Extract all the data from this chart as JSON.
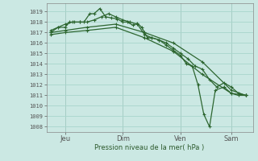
{
  "bg_color": "#cbe8e3",
  "grid_color": "#a8d5cc",
  "line_color": "#2d6630",
  "ylim": [
    1007.5,
    1019.8
  ],
  "yticks": [
    1008,
    1009,
    1010,
    1011,
    1012,
    1013,
    1014,
    1015,
    1016,
    1017,
    1018,
    1019
  ],
  "xlabel": "Pression niveau de la mer( hPa )",
  "xtick_labels": [
    "Jeu",
    "Dim",
    "Ven",
    "Sam"
  ],
  "xtick_positions": [
    1.0,
    5.0,
    9.0,
    12.5
  ],
  "xlim": [
    -0.3,
    14.0
  ],
  "series": [
    {
      "x": [
        0.0,
        0.5,
        1.0,
        1.3,
        1.6,
        2.0,
        2.3,
        2.7,
        3.0,
        3.4,
        3.8,
        4.2,
        4.6,
        5.0,
        5.3,
        5.7,
        6.0,
        6.3,
        6.7,
        7.0,
        7.5,
        8.0,
        8.5,
        9.0,
        9.4,
        9.8,
        10.2,
        10.6,
        11.0,
        11.4,
        12.0,
        12.5,
        13.0,
        13.5
      ],
      "y": [
        1017.0,
        1017.5,
        1017.5,
        1018.0,
        1018.0,
        1018.0,
        1018.0,
        1018.8,
        1018.8,
        1019.3,
        1018.5,
        1018.4,
        1018.3,
        1018.0,
        1018.0,
        1017.7,
        1017.9,
        1017.5,
        1016.5,
        1016.5,
        1016.3,
        1015.8,
        1015.3,
        1014.8,
        1014.0,
        1013.8,
        1012.0,
        1009.2,
        1008.0,
        1011.5,
        1011.8,
        1011.2,
        1011.0,
        1011.0
      ]
    },
    {
      "x": [
        0.0,
        0.5,
        1.0,
        1.5,
        2.0,
        2.5,
        3.0,
        3.5,
        4.0,
        4.5,
        5.0,
        5.5,
        6.0,
        6.5,
        7.0,
        7.5,
        8.0,
        8.5,
        9.0,
        9.5,
        10.0,
        10.5,
        11.0,
        11.5,
        12.0,
        12.5,
        13.0,
        13.5
      ],
      "y": [
        1017.2,
        1017.5,
        1017.8,
        1018.0,
        1018.0,
        1018.0,
        1018.2,
        1018.5,
        1018.8,
        1018.5,
        1018.2,
        1018.0,
        1017.8,
        1016.8,
        1016.5,
        1016.3,
        1016.0,
        1015.5,
        1015.0,
        1014.5,
        1013.8,
        1013.5,
        1012.5,
        1011.8,
        1012.2,
        1011.8,
        1011.2,
        1011.0
      ]
    },
    {
      "x": [
        0.0,
        1.0,
        2.5,
        4.5,
        6.5,
        8.5,
        10.5,
        12.5,
        13.5
      ],
      "y": [
        1017.0,
        1017.2,
        1017.5,
        1017.8,
        1017.0,
        1016.0,
        1014.2,
        1011.5,
        1011.0
      ]
    },
    {
      "x": [
        0.0,
        1.0,
        2.5,
        4.5,
        6.5,
        8.5,
        10.5,
        12.5,
        13.5
      ],
      "y": [
        1016.8,
        1017.0,
        1017.2,
        1017.5,
        1016.5,
        1015.2,
        1013.0,
        1011.2,
        1011.0
      ]
    }
  ]
}
